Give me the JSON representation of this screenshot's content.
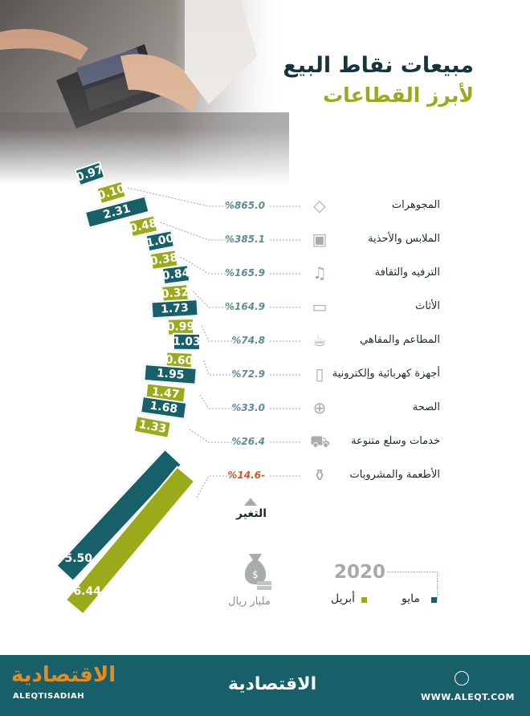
{
  "title": "مبيعات نقاط البيع",
  "subtitle": "لأبرز القطاعات",
  "legend": {
    "year": "2020",
    "may": "مايو",
    "april": "أبريل",
    "may_color": "#175f69",
    "april_color": "#9aaa1a"
  },
  "unit": "مليار ريال",
  "change_label": "التغير",
  "footer": {
    "logo_ar": "الاقتصادية",
    "logo_en": "ALEQTISADIAH",
    "center_logo": "الاقتصادية",
    "website": "WWW.ALEQT.COM"
  },
  "icons": {
    "sectors": [
      "diamond-icon",
      "clothes-icon",
      "music-note-icon",
      "sofa-icon",
      "coffee-cup-icon",
      "phone-tablet-icon",
      "medical-kit-icon",
      "shopping-cart-icon",
      "grocery-bottles-icon"
    ],
    "unit": "money-bag-icon",
    "change": "triangle-up-icon",
    "site": "globe-icon"
  },
  "chart_data": {
    "type": "bar",
    "title": "مبيعات نقاط البيع لأبرز القطاعات",
    "categories": [
      "المجوهرات",
      "الملابس والأحذية",
      "الترفيه والثقافة",
      "الأثاث",
      "المطاعم والمقاهي",
      "أجهزة كهربائية وإلكترونية",
      "الصحة",
      "خدمات وسلع متنوعة",
      "الأطعمة والمشروبات"
    ],
    "series": [
      {
        "name": "مايو",
        "values_label": [
          "0.97",
          "2.31",
          "1.00",
          "0.84",
          "1.73",
          "1.03",
          "1.95",
          "1.68",
          "5.50"
        ],
        "values": [
          0.97,
          2.31,
          1.0,
          0.84,
          1.73,
          1.03,
          1.95,
          1.68,
          5.5
        ]
      },
      {
        "name": "أبريل",
        "values_label": [
          "0.10",
          "0.48",
          "0.38",
          "0.32",
          "0.99",
          "0.60",
          "1.47",
          "1.33",
          "6.44"
        ],
        "values": [
          0.1,
          0.48,
          0.38,
          0.32,
          0.99,
          0.6,
          1.47,
          1.33,
          6.44
        ]
      }
    ],
    "change_pct": [
      "865.0%",
      "385.1%",
      "165.9%",
      "164.9%",
      "74.8%",
      "72.9%",
      "33.0%",
      "26.4%",
      "-14.6%"
    ],
    "change_display": [
      "%865.0",
      "%385.1",
      "%165.9",
      "%164.9",
      "%74.8",
      "%72.9",
      "%33.0",
      "%26.4",
      "%14.6-"
    ],
    "unit": "مليار ريال",
    "legend": "bottom-right"
  }
}
